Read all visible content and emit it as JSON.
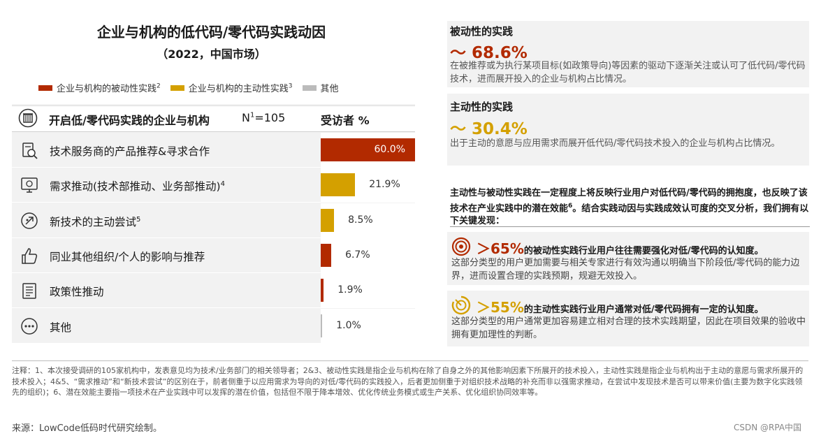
{
  "title": "企业与机构的低代码/零代码实践动因",
  "subtitle": "（2022，中国市场）",
  "legend": [
    {
      "label": "企业与机构的被动性实践",
      "sup": "2",
      "color": "#b22a00"
    },
    {
      "label": "企业与机构的主动性实践",
      "sup": "3",
      "color": "#d4a000"
    },
    {
      "label": "其他",
      "sup": "",
      "color": "#bbbbbb"
    }
  ],
  "table_header": {
    "label": "开启低/零代码实践的企业与机构",
    "n_prefix": "N",
    "n_sup": "1",
    "n_value": "=105",
    "pct_label": "受访者 %"
  },
  "chart_data": {
    "type": "bar",
    "orientation": "horizontal",
    "categories": [
      "技术服务商的产品推荐&寻求合作",
      "需求推动(技术部推动、业务部推动)",
      "新技术的主动尝试",
      "同业其他组织/个人的影响与推荐",
      "政策性推动",
      "其他"
    ],
    "category_sups": [
      "",
      "4",
      "5",
      "",
      "",
      ""
    ],
    "values": [
      60.0,
      21.9,
      8.5,
      6.7,
      1.9,
      1.0
    ],
    "value_labels": [
      "60.0%",
      "21.9%",
      "8.5%",
      "6.7%",
      "1.9%",
      "1.0%"
    ],
    "colors": [
      "#b22a00",
      "#d4a000",
      "#d4a000",
      "#b22a00",
      "#b22a00",
      "#bbbbbb"
    ],
    "icons": [
      "search-doc-icon",
      "monitor-icon",
      "rocket-icon",
      "thumbs-up-icon",
      "document-icon",
      "ellipsis-icon"
    ],
    "xlim": [
      0,
      60
    ]
  },
  "right_panel": {
    "passive": {
      "heading": "被动性的实践",
      "value": "～ 68.6%",
      "color": "#b22a00",
      "desc": "在被推荐或为执行某项目标(如政策导向)等因素的驱动下逐渐关注或认可了低代码/零代码技术，进而展开投入的企业与机构占比情况。"
    },
    "active": {
      "heading": "主动性的实践",
      "value": "～ 30.4%",
      "color": "#d4a000",
      "desc": "出于主动的意愿与应用需求而展开低代码/零代码技术投入的企业与机构占比情况。"
    },
    "summary_a": "主动性与被动性实践在一定程度上将反映行业用户对低代码/零代码的拥抱度，也反映了该技术在产业实践中的潜在效能",
    "summary_sup": "6",
    "summary_b": "。结合实践动因与实践成效认可度的交叉分析，我们拥有以下关键发现：",
    "finding1": {
      "pct": "＞65%",
      "head": "的被动性实践行业用户往往需要强化对低/零代码的认知度。",
      "desc": "这部分类型的用户更加需要与相关专家进行有效沟通以明确当下阶段低/零代码的能力边界，进而设置合理的实践预期，规避无效投入。",
      "color": "#b22a00",
      "icon": "target-icon"
    },
    "finding2": {
      "pct": "＞55%",
      "head": "的主动性实践行业用户通常对低/零代码拥有一定的认知度。",
      "desc": "这部分类型的用户通常更加容易建立相对合理的技术实践期望，因此在项目效果的验收中拥有更加理性的判断。",
      "color": "#d4a000",
      "icon": "progress-icon"
    }
  },
  "notes": "注释：1、本次接受调研的105家机构中，发表意见均为技术/业务部门的相关领导者；2&3、被动性实践是指企业与机构在除了自身之外的其他影响因素下所展开的技术投入，主动性实践是指企业与机构出于主动的意愿与需求所展开的技术投入；4&5、“需求推动”和“新技术尝试”的区别在于，前者侧重于以应用需求为导向的对低/零代码的实践投入，后者更加侧重于对组织技术战略的补充而非以强需求推动，在尝试中发现技术是否可以带来价值(主要为数字化实践领先的组织)；6、潜在效能主要指一项技术在产业实践中可以发挥的潜在价值，包括但不限于降本增效、优化传统业务模式或生产关系、优化组织协同效率等。",
  "source": "来源：LowCode低码时代研究绘制。",
  "watermark": "CSDN @RPA中国"
}
